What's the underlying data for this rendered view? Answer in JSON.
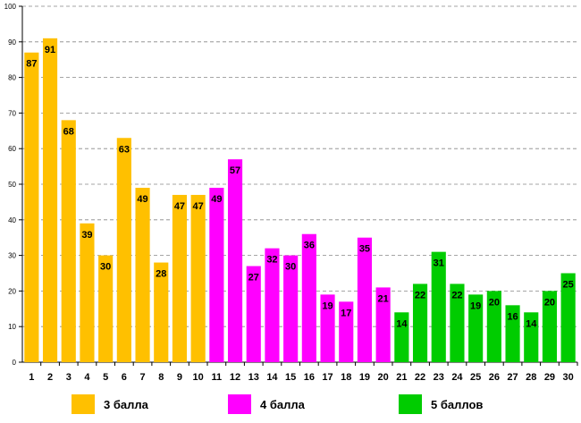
{
  "chart_data": {
    "type": "bar",
    "title": "",
    "xlabel": "",
    "ylabel": "",
    "ylim": [
      0,
      100
    ],
    "ytick_step": 10,
    "categories": [
      "1",
      "2",
      "3",
      "4",
      "5",
      "6",
      "7",
      "8",
      "9",
      "10",
      "11",
      "12",
      "13",
      "14",
      "15",
      "16",
      "17",
      "18",
      "19",
      "20",
      "21",
      "22",
      "23",
      "24",
      "25",
      "26",
      "27",
      "28",
      "29",
      "30"
    ],
    "values": [
      87,
      91,
      68,
      39,
      30,
      63,
      49,
      28,
      47,
      47,
      49,
      57,
      27,
      32,
      30,
      36,
      19,
      17,
      35,
      21,
      14,
      22,
      31,
      22,
      19,
      20,
      16,
      14,
      20,
      25
    ],
    "groups": [
      {
        "name": "3 балла",
        "color": "#FFC000",
        "from": 1,
        "to": 10
      },
      {
        "name": "4 балла",
        "color": "#FF00FF",
        "from": 11,
        "to": 20
      },
      {
        "name": "5 баллов",
        "color": "#00CC00",
        "from": 21,
        "to": 30
      }
    ],
    "grid": true,
    "legend_position": "bottom"
  }
}
